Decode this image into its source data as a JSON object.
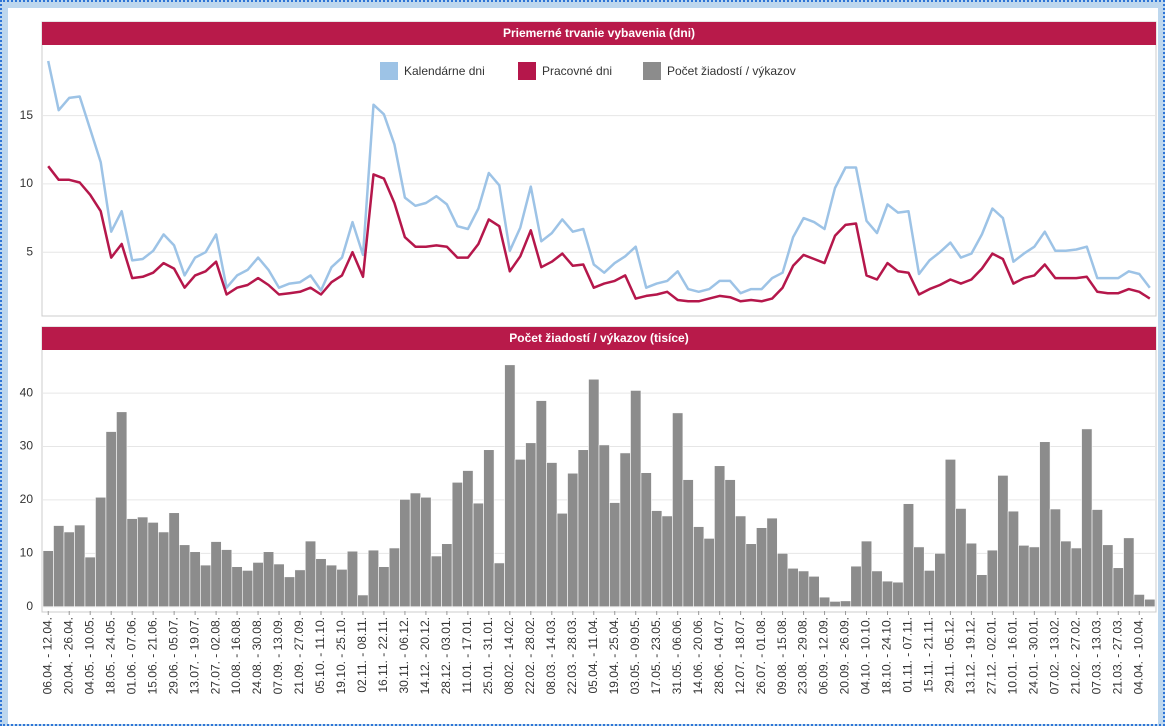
{
  "chart_data": [
    {
      "type": "line",
      "title": "Priemerné trvanie vybavenia (dni)",
      "ylim": [
        0.4,
        20.1
      ],
      "yticks": [
        5,
        10,
        15
      ],
      "grid": true,
      "series": [
        {
          "name": "Kalendárne dni",
          "color": "#9dc3e6",
          "values": [
            19,
            15.4,
            16.3,
            16.4,
            14,
            11.6,
            6.5,
            8,
            4.4,
            4.5,
            5.1,
            6.3,
            5.5,
            3.3,
            4.6,
            5,
            6.3,
            2.4,
            3.3,
            3.7,
            4.6,
            3.7,
            2.4,
            2.7,
            2.8,
            3.3,
            2.2,
            3.9,
            4.6,
            7.2,
            4.8,
            15.8,
            15.1,
            12.9,
            9,
            8.4,
            8.6,
            9.1,
            8.5,
            6.9,
            6.7,
            8.2,
            10.8,
            9.9,
            5.1,
            6.8,
            9.8,
            5.8,
            6.4,
            7.4,
            6.5,
            6.7,
            4.1,
            3.5,
            4.2,
            4.7,
            5.4,
            2.4,
            2.7,
            2.9,
            3.6,
            2.3,
            2.1,
            2.3,
            2.9,
            2.9,
            2,
            2.3,
            2.3,
            3.1,
            3.5,
            6.1,
            7.5,
            7.2,
            6.7,
            9.7,
            11.2,
            11.2,
            7.3,
            6.4,
            8.5,
            7.9,
            8,
            3.4,
            4.4,
            5,
            5.7,
            4.6,
            4.9,
            6.3,
            8.2,
            7.5,
            4.3,
            4.9,
            5.4,
            6.5,
            5.1,
            5.1,
            5.2,
            5.4,
            3.1,
            3.1,
            3.1,
            3.6,
            3.4,
            2.4
          ]
        },
        {
          "name": "Pracovné dni",
          "color": "#b5174b",
          "values": [
            11.3,
            10.3,
            10.3,
            10.1,
            9.2,
            8,
            4.6,
            5.6,
            3.1,
            3.2,
            3.5,
            4.2,
            3.8,
            2.4,
            3.3,
            3.6,
            4.3,
            1.9,
            2.4,
            2.6,
            3.1,
            2.6,
            1.9,
            2,
            2.1,
            2.4,
            1.9,
            2.8,
            3.3,
            5,
            3.2,
            10.7,
            10.4,
            8.6,
            6.1,
            5.4,
            5.4,
            5.5,
            5.4,
            4.6,
            4.6,
            5.6,
            7.4,
            6.9,
            3.6,
            4.7,
            6.6,
            3.9,
            4.3,
            4.9,
            4,
            4.1,
            2.4,
            2.7,
            2.9,
            3.3,
            1.6,
            1.8,
            1.9,
            2.1,
            1.5,
            1.4,
            1.4,
            1.6,
            1.8,
            1.7,
            1.4,
            1.5,
            1.4,
            1.6,
            2.4,
            4,
            4.8,
            4.5,
            4.2,
            6.2,
            7,
            7.1,
            3.3,
            3,
            4.2,
            3.6,
            3.5,
            1.9,
            2.3,
            2.6,
            3,
            2.7,
            3,
            3.8,
            4.9,
            4.5,
            2.7,
            3.1,
            3.3,
            4.1,
            3.1,
            3.1,
            3.1,
            3.2,
            2.1,
            2,
            2,
            2.3,
            2.1,
            1.6
          ]
        }
      ]
    },
    {
      "type": "bar",
      "title": "Počet žiadostí / výkazov (tisíce)",
      "ylim": [
        -0.8,
        47.7
      ],
      "yticks": [
        0,
        10,
        20,
        30,
        40
      ],
      "grid": true,
      "categories": [
        "06.04. - 12.04.",
        null,
        "20.04. - 26.04.",
        null,
        "04.05. - 10.05.",
        null,
        "18.05. - 24.05.",
        null,
        "01.06. - 07.06.",
        null,
        "15.06. - 21.06.",
        null,
        "29.06. - 05.07.",
        null,
        "13.07. - 19.07.",
        null,
        "27.07. - 02.08.",
        null,
        "10.08. - 16.08.",
        null,
        "24.08. - 30.08.",
        null,
        "07.09. - 13.09.",
        null,
        "21.09. - 27.09.",
        null,
        "05.10. - 11.10.",
        null,
        "19.10. - 25.10.",
        null,
        "02.11. - 08.11.",
        null,
        "16.11. - 22.11.",
        null,
        "30.11. - 06.12.",
        null,
        "14.12. - 20.12.",
        null,
        "28.12. - 03.01.",
        null,
        "11.01. - 17.01.",
        null,
        "25.01. - 31.01.",
        null,
        "08.02. - 14.02.",
        null,
        "22.02. - 28.02.",
        null,
        "08.03. - 14.03.",
        null,
        "22.03. - 28.03.",
        null,
        "05.04. - 11.04.",
        null,
        "19.04. - 25.04.",
        null,
        "03.05. - 09.05.",
        null,
        "17.05. - 23.05.",
        null,
        "31.05. - 06.06.",
        null,
        "14.06. - 20.06.",
        null,
        "28.06. - 04.07.",
        null,
        "12.07. - 18.07.",
        null,
        "26.07. - 01.08.",
        null,
        "09.08. - 15.08.",
        null,
        "23.08. - 29.08.",
        null,
        "06.09. - 12.09.",
        null,
        "20.09. - 26.09.",
        null,
        "04.10. - 10.10.",
        null,
        "18.10. - 24.10.",
        null,
        "01.11. - 07.11.",
        null,
        "15.11. - 21.11.",
        null,
        "29.11. - 05.12.",
        null,
        "13.12. - 19.12.",
        null,
        "27.12. - 02.01.",
        null,
        "10.01. - 16.01.",
        null,
        "24.01. - 30.01.",
        null,
        "07.02. - 13.02.",
        null,
        "21.02. - 27.02.",
        null,
        "07.03. - 13.03.",
        null,
        "21.03. - 27.03.",
        null,
        "04.04. - 10.04.",
        null
      ],
      "series": [
        {
          "name": "Počet žiadostí / výkazov",
          "color": "#8c8c8c",
          "values": [
            10.5,
            15.2,
            14,
            15.3,
            9.3,
            20.5,
            32.8,
            36.5,
            16.5,
            16.8,
            15.8,
            14,
            17.6,
            11.6,
            10.3,
            7.8,
            12.2,
            10.7,
            7.5,
            6.8,
            8.3,
            10.3,
            8,
            5.6,
            6.9,
            12.3,
            9,
            7.8,
            7,
            10.4,
            2.2,
            10.6,
            7.5,
            11,
            20.1,
            21.3,
            20.5,
            9.5,
            11.8,
            23.3,
            25.5,
            19.4,
            29.4,
            8.2,
            45.3,
            27.6,
            30.7,
            38.6,
            27,
            17.5,
            25,
            29.4,
            42.6,
            30.3,
            19.5,
            28.8,
            40.5,
            25.1,
            18,
            17,
            36.3,
            23.8,
            15,
            12.8,
            26.4,
            23.8,
            17,
            11.8,
            14.8,
            16.6,
            10,
            7.2,
            6.7,
            5.7,
            1.8,
            1,
            1.1,
            7.6,
            12.3,
            6.7,
            4.8,
            4.6,
            19.3,
            11.2,
            6.8,
            10,
            27.6,
            18.4,
            11.9,
            6,
            10.6,
            24.6,
            17.9,
            11.5,
            11.2,
            30.9,
            18.3,
            12.3,
            11,
            33.3,
            18.2,
            11.6,
            7.3,
            12.9,
            2.3,
            1.4
          ]
        }
      ]
    }
  ]
}
